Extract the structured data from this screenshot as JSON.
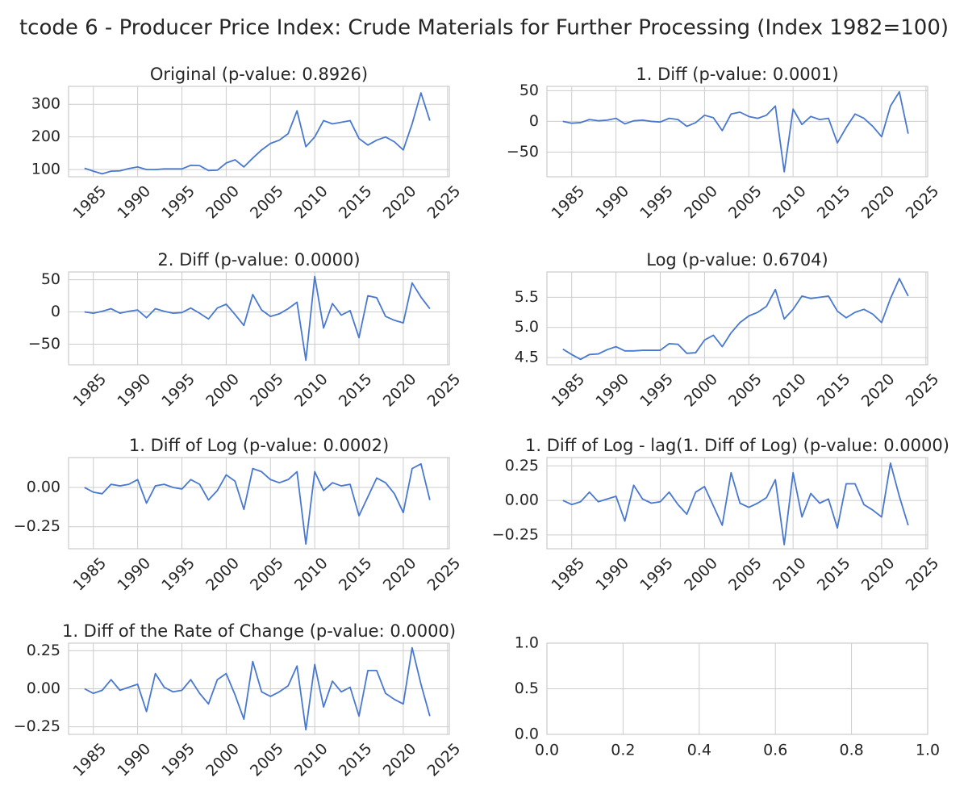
{
  "title": "tcode 6 - Producer Price Index: Crude Materials for Further Processing (Index 1982=100)",
  "chart_data": [
    {
      "type": "line",
      "title": "Original (p-value: 0.8926)",
      "color": "#4878d0",
      "grid": true,
      "x": [
        1984,
        1985,
        1986,
        1987,
        1988,
        1989,
        1990,
        1991,
        1992,
        1993,
        1994,
        1995,
        1996,
        1997,
        1998,
        1999,
        2000,
        2001,
        2002,
        2003,
        2004,
        2005,
        2006,
        2007,
        2008,
        2009,
        2010,
        2011,
        2012,
        2013,
        2014,
        2015,
        2016,
        2017,
        2018,
        2019,
        2020,
        2021,
        2022,
        2023
      ],
      "values": [
        104,
        95,
        87,
        95,
        96,
        103,
        108,
        100,
        100,
        102,
        102,
        102,
        113,
        112,
        97,
        98,
        120,
        130,
        108,
        135,
        160,
        180,
        190,
        210,
        280,
        170,
        200,
        250,
        240,
        245,
        250,
        195,
        175,
        190,
        200,
        185,
        160,
        240,
        335,
        250
      ],
      "xlim": [
        1982.2,
        2025.2
      ],
      "xticks": [
        1985,
        1990,
        1995,
        2000,
        2005,
        2010,
        2015,
        2020,
        2025
      ],
      "ylim": [
        78,
        355
      ],
      "yticks": [
        100,
        200,
        300
      ]
    },
    {
      "type": "line",
      "title": "1. Diff (p-value: 0.0001)",
      "color": "#4878d0",
      "grid": true,
      "x": [
        1984,
        1985,
        1986,
        1987,
        1988,
        1989,
        1990,
        1991,
        1992,
        1993,
        1994,
        1995,
        1996,
        1997,
        1998,
        1999,
        2000,
        2001,
        2002,
        2003,
        2004,
        2005,
        2006,
        2007,
        2008,
        2009,
        2010,
        2011,
        2012,
        2013,
        2014,
        2015,
        2016,
        2017,
        2018,
        2019,
        2020,
        2021,
        2022,
        2023
      ],
      "values": [
        0,
        -3,
        -2,
        3,
        1,
        2,
        5,
        -4,
        1,
        2,
        0,
        -1,
        5,
        3,
        -8,
        -2,
        10,
        6,
        -15,
        12,
        15,
        8,
        5,
        10,
        25,
        -82,
        20,
        -5,
        8,
        3,
        5,
        -35,
        -10,
        12,
        5,
        -8,
        -25,
        25,
        48,
        -20
      ],
      "xlim": [
        1982.2,
        2025.2
      ],
      "xticks": [
        1985,
        1990,
        1995,
        2000,
        2005,
        2010,
        2015,
        2020,
        2025
      ],
      "ylim": [
        -90,
        57
      ],
      "yticks": [
        {
          "value": -50,
          "label": "−50"
        },
        0,
        50
      ]
    },
    {
      "type": "line",
      "title": "2. Diff (p-value: 0.0000)",
      "color": "#4878d0",
      "grid": true,
      "x": [
        1984,
        1985,
        1986,
        1987,
        1988,
        1989,
        1990,
        1991,
        1992,
        1993,
        1994,
        1995,
        1996,
        1997,
        1998,
        1999,
        2000,
        2001,
        2002,
        2003,
        2004,
        2005,
        2006,
        2007,
        2008,
        2009,
        2010,
        2011,
        2012,
        2013,
        2014,
        2015,
        2016,
        2017,
        2018,
        2019,
        2020,
        2021,
        2022,
        2023
      ],
      "values": [
        0,
        -2,
        1,
        5,
        -2,
        1,
        3,
        -9,
        5,
        1,
        -2,
        -1,
        6,
        -2,
        -11,
        6,
        12,
        -4,
        -21,
        27,
        3,
        -7,
        -3,
        5,
        15,
        -75,
        55,
        -25,
        13,
        -5,
        2,
        -40,
        25,
        22,
        -7,
        -13,
        -17,
        45,
        23,
        5
      ],
      "xlim": [
        1982.2,
        2025.2
      ],
      "xticks": [
        1985,
        1990,
        1995,
        2000,
        2005,
        2010,
        2015,
        2020,
        2025
      ],
      "ylim": [
        -82,
        62
      ],
      "yticks": [
        {
          "value": -50,
          "label": "−50"
        },
        0,
        50
      ]
    },
    {
      "type": "line",
      "title": "Log (p-value: 0.6704)",
      "color": "#4878d0",
      "grid": true,
      "x": [
        1984,
        1985,
        1986,
        1987,
        1988,
        1989,
        1990,
        1991,
        1992,
        1993,
        1994,
        1995,
        1996,
        1997,
        1998,
        1999,
        2000,
        2001,
        2002,
        2003,
        2004,
        2005,
        2006,
        2007,
        2008,
        2009,
        2010,
        2011,
        2012,
        2013,
        2014,
        2015,
        2016,
        2017,
        2018,
        2019,
        2020,
        2021,
        2022,
        2023
      ],
      "values": [
        4.64,
        4.55,
        4.47,
        4.55,
        4.56,
        4.63,
        4.68,
        4.61,
        4.61,
        4.62,
        4.62,
        4.62,
        4.73,
        4.72,
        4.57,
        4.58,
        4.79,
        4.87,
        4.68,
        4.91,
        5.08,
        5.19,
        5.25,
        5.35,
        5.63,
        5.14,
        5.3,
        5.52,
        5.48,
        5.5,
        5.52,
        5.27,
        5.16,
        5.25,
        5.3,
        5.22,
        5.08,
        5.48,
        5.81,
        5.52
      ],
      "xlim": [
        1982.2,
        2025.2
      ],
      "xticks": [
        1985,
        1990,
        1995,
        2000,
        2005,
        2010,
        2015,
        2020,
        2025
      ],
      "ylim": [
        4.38,
        5.92
      ],
      "yticks": [
        4.5,
        {
          "value": 5,
          "label": "5.0"
        },
        5.5
      ]
    },
    {
      "type": "line",
      "title": "1. Diff of Log (p-value: 0.0002)",
      "color": "#4878d0",
      "grid": true,
      "x": [
        1984,
        1985,
        1986,
        1987,
        1988,
        1989,
        1990,
        1991,
        1992,
        1993,
        1994,
        1995,
        1996,
        1997,
        1998,
        1999,
        2000,
        2001,
        2002,
        2003,
        2004,
        2005,
        2006,
        2007,
        2008,
        2009,
        2010,
        2011,
        2012,
        2013,
        2014,
        2015,
        2016,
        2017,
        2018,
        2019,
        2020,
        2021,
        2022,
        2023
      ],
      "values": [
        0,
        -0.03,
        -0.04,
        0.02,
        0.01,
        0.02,
        0.05,
        -0.1,
        0.01,
        0.02,
        0,
        -0.01,
        0.05,
        0.02,
        -0.08,
        -0.02,
        0.08,
        0.04,
        -0.14,
        0.12,
        0.1,
        0.05,
        0.03,
        0.05,
        0.1,
        -0.36,
        0.1,
        -0.02,
        0.03,
        0.01,
        0.02,
        -0.18,
        -0.06,
        0.06,
        0.03,
        -0.04,
        -0.16,
        0.12,
        0.15,
        -0.08
      ],
      "xlim": [
        1982.2,
        2025.2
      ],
      "xticks": [
        1985,
        1990,
        1995,
        2000,
        2005,
        2010,
        2015,
        2020,
        2025
      ],
      "ylim": [
        -0.39,
        0.19
      ],
      "yticks": [
        {
          "value": -0.25,
          "label": "−0.25"
        },
        {
          "value": 0,
          "label": "0.00"
        }
      ]
    },
    {
      "type": "line",
      "title": "1. Diff of Log - lag(1. Diff of Log) (p-value: 0.0000)",
      "color": "#4878d0",
      "grid": true,
      "x": [
        1984,
        1985,
        1986,
        1987,
        1988,
        1989,
        1990,
        1991,
        1992,
        1993,
        1994,
        1995,
        1996,
        1997,
        1998,
        1999,
        2000,
        2001,
        2002,
        2003,
        2004,
        2005,
        2006,
        2007,
        2008,
        2009,
        2010,
        2011,
        2012,
        2013,
        2014,
        2015,
        2016,
        2017,
        2018,
        2019,
        2020,
        2021,
        2022,
        2023
      ],
      "values": [
        0,
        -0.03,
        -0.01,
        0.06,
        -0.01,
        0.01,
        0.03,
        -0.15,
        0.11,
        0.01,
        -0.02,
        -0.01,
        0.06,
        -0.03,
        -0.1,
        0.06,
        0.1,
        -0.04,
        -0.18,
        0.2,
        -0.02,
        -0.05,
        -0.02,
        0.02,
        0.15,
        -0.32,
        0.2,
        -0.12,
        0.05,
        -0.02,
        0.01,
        -0.2,
        0.12,
        0.12,
        -0.03,
        -0.07,
        -0.12,
        0.27,
        0.03,
        -0.18
      ],
      "xlim": [
        1982.2,
        2025.2
      ],
      "xticks": [
        1985,
        1990,
        1995,
        2000,
        2005,
        2010,
        2015,
        2020,
        2025
      ],
      "ylim": [
        -0.35,
        0.31
      ],
      "yticks": [
        {
          "value": -0.25,
          "label": "−0.25"
        },
        {
          "value": 0,
          "label": "0.00"
        },
        0.25
      ]
    },
    {
      "type": "line",
      "title": "1. Diff of the Rate of Change (p-value: 0.0000)",
      "color": "#4878d0",
      "grid": true,
      "x": [
        1984,
        1985,
        1986,
        1987,
        1988,
        1989,
        1990,
        1991,
        1992,
        1993,
        1994,
        1995,
        1996,
        1997,
        1998,
        1999,
        2000,
        2001,
        2002,
        2003,
        2004,
        2005,
        2006,
        2007,
        2008,
        2009,
        2010,
        2011,
        2012,
        2013,
        2014,
        2015,
        2016,
        2017,
        2018,
        2019,
        2020,
        2021,
        2022,
        2023
      ],
      "values": [
        0,
        -0.03,
        -0.01,
        0.06,
        -0.01,
        0.01,
        0.03,
        -0.15,
        0.1,
        0.01,
        -0.02,
        -0.01,
        0.06,
        -0.03,
        -0.1,
        0.06,
        0.1,
        -0.04,
        -0.2,
        0.18,
        -0.02,
        -0.05,
        -0.02,
        0.02,
        0.15,
        -0.27,
        0.16,
        -0.12,
        0.05,
        -0.02,
        0.01,
        -0.18,
        0.12,
        0.12,
        -0.03,
        -0.07,
        -0.1,
        0.27,
        0.03,
        -0.18
      ],
      "xlim": [
        1982.2,
        2025.2
      ],
      "xticks": [
        1985,
        1990,
        1995,
        2000,
        2005,
        2010,
        2015,
        2020,
        2025
      ],
      "ylim": [
        -0.3,
        0.3
      ],
      "yticks": [
        {
          "value": -0.25,
          "label": "−0.25"
        },
        {
          "value": 0,
          "label": "0.00"
        },
        0.25
      ]
    },
    {
      "type": "empty",
      "grid": true,
      "xlim": [
        0,
        1
      ],
      "xticks": [
        {
          "value": 0,
          "label": "0.0"
        },
        0.2,
        0.4,
        0.6,
        0.8,
        {
          "value": 1,
          "label": "1.0"
        }
      ],
      "ylim": [
        0,
        1
      ],
      "yticks": [
        {
          "value": 0,
          "label": "0.0"
        },
        0.5,
        {
          "value": 1,
          "label": "1.0"
        }
      ]
    }
  ]
}
